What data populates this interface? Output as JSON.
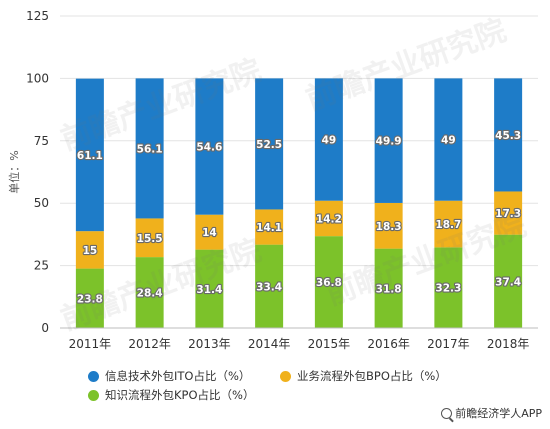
{
  "chart_data": {
    "type": "bar",
    "stacked": true,
    "categories": [
      "2011年",
      "2012年",
      "2013年",
      "2014年",
      "2015年",
      "2016年",
      "2017年",
      "2018年"
    ],
    "series": [
      {
        "name": "知识流程外包KPO占比（%）",
        "color": "#7cc22a",
        "values": [
          23.8,
          28.4,
          31.4,
          33.4,
          36.8,
          31.8,
          32.3,
          37.4
        ]
      },
      {
        "name": "业务流程外包BPO占比（%）",
        "color": "#f0b11c",
        "values": [
          15,
          15.5,
          14,
          14.1,
          14.2,
          18.3,
          18.7,
          17.3
        ]
      },
      {
        "name": "信息技术外包ITO占比（%）",
        "color": "#1e7cc8",
        "values": [
          61.1,
          56.1,
          54.6,
          52.5,
          49,
          49.9,
          49,
          45.3
        ]
      }
    ],
    "ylabel": "单位：%",
    "ylim": [
      0,
      125
    ],
    "yticks": [
      0,
      25,
      50,
      75,
      100,
      125
    ],
    "grid": true,
    "legend_position": "bottom"
  },
  "legend": {
    "ito": "信息技术外包ITO占比（%）",
    "bpo": "业务流程外包BPO占比（%）",
    "kpo": "知识流程外包KPO占比（%）"
  },
  "source": "前瞻经济学人APP",
  "watermark": "前瞻产业研究院"
}
